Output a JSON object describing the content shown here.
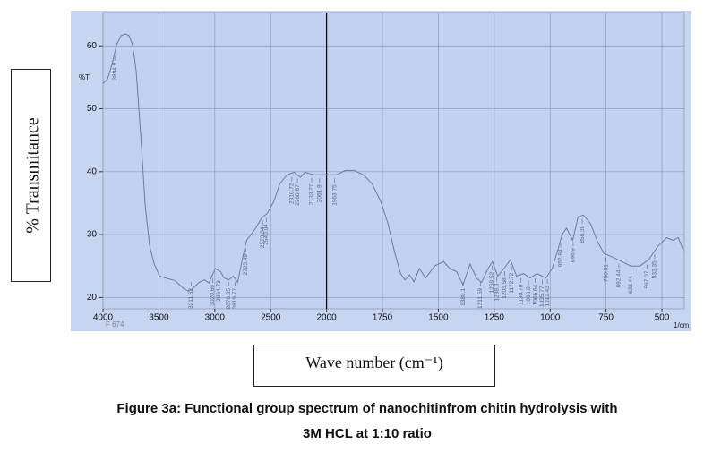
{
  "chart_data": {
    "type": "line",
    "y_label": "% Transmitance",
    "x_label": "Wave number (cm⁻¹)",
    "caption": [
      "Figure 3a: Functional group spectrum of nanochitinfrom chitin hydrolysis with",
      "3M HCL at 1:10 ratio"
    ],
    "y_unit": "%T",
    "x_unit": "1/cm",
    "sample": "F 674",
    "xlim": [
      4000,
      400
    ],
    "x_scale_change": 2000,
    "xticks": [
      4000,
      3500,
      3000,
      2500,
      2000,
      1750,
      1500,
      1250,
      1000,
      750,
      500
    ],
    "ylim": [
      18.2,
      65.3
    ],
    "yticks": [
      20,
      30,
      40,
      50,
      60
    ],
    "grid": true,
    "series": [
      {
        "color": "#6f7c98",
        "x": [
          4000,
          3960,
          3920,
          3880,
          3840,
          3800,
          3767,
          3735,
          3703,
          3663,
          3622,
          3582,
          3542,
          3494,
          3438,
          3357,
          3277,
          3237,
          3197,
          3141,
          3092,
          3052,
          2996,
          2948,
          2916,
          2876,
          2835,
          2795,
          2755,
          2715,
          2635,
          2578,
          2530,
          2474,
          2418,
          2353,
          2289,
          2233,
          2193,
          2112,
          2032,
          1984,
          1956,
          1916,
          1876,
          1836,
          1797,
          1757,
          1725,
          1697,
          1669,
          1649,
          1629,
          1609,
          1585,
          1557,
          1517,
          1477,
          1449,
          1418,
          1390,
          1358,
          1330,
          1306,
          1278,
          1258,
          1234,
          1206,
          1178,
          1150,
          1118,
          1090,
          1059,
          1019,
          991,
          967,
          947,
          927,
          899,
          875,
          851,
          819,
          787,
          759,
          719,
          679,
          639,
          599,
          559,
          519,
          479,
          451,
          427,
          403
        ],
        "values": [
          54.0,
          54.7,
          57.0,
          60.1,
          61.6,
          61.9,
          61.6,
          60.1,
          55.9,
          45.9,
          34.5,
          28.1,
          25.3,
          23.4,
          23.1,
          22.7,
          21.4,
          21.0,
          21.4,
          22.4,
          22.8,
          22.3,
          24.6,
          24.1,
          23.1,
          22.8,
          23.4,
          22.4,
          26.0,
          29.1,
          31.0,
          32.7,
          33.4,
          35.2,
          38.1,
          39.5,
          39.9,
          39.1,
          39.9,
          39.5,
          39.5,
          39.5,
          39.5,
          40.2,
          40.2,
          39.5,
          38.1,
          35.2,
          31.7,
          27.4,
          23.8,
          22.8,
          23.6,
          22.5,
          24.6,
          23.1,
          25.0,
          25.7,
          24.6,
          24.1,
          22.0,
          25.3,
          23.1,
          22.4,
          24.6,
          25.7,
          23.4,
          24.6,
          26.0,
          23.4,
          23.8,
          23.1,
          23.8,
          23.1,
          24.6,
          27.4,
          30.0,
          31.0,
          29.1,
          32.8,
          33.1,
          31.7,
          28.8,
          27.0,
          26.4,
          25.7,
          25.0,
          25.0,
          26.0,
          28.1,
          29.5,
          29.1,
          29.5,
          27.4
        ]
      }
    ],
    "peaks": [
      3894.9,
      3211.62,
      3020.69,
      2964.73,
      2876.35,
      2819.77,
      2723.49,
      2573.04,
      2540.04,
      2310.72,
      2260.67,
      2133.27,
      2061.9,
      1963.75,
      1389.1,
      1311.59,
      1259.52,
      1238.3,
      1203.58,
      1172.72,
      1130.78,
      1096.8,
      1066.64,
      1035.77,
      1012.43,
      952.84,
      896.9,
      856.39,
      750.31,
      692.44,
      638.44,
      567.07,
      532.35
    ]
  }
}
